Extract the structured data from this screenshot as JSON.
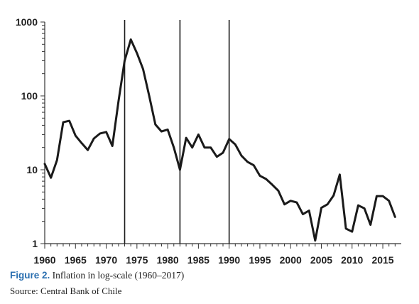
{
  "caption": {
    "figure_label": "Figure 2.",
    "figure_text": " Inflation in log-scale (1960–2017)",
    "source": "Source: Central Bank of Chile"
  },
  "colors": {
    "line": "#1a1a1a",
    "axis": "#333333",
    "figure_label": "#2a6fb0"
  },
  "chart_data": {
    "type": "line",
    "title": "",
    "xlabel": "",
    "ylabel": "",
    "y_scale": "log",
    "ylim": [
      1,
      1000
    ],
    "xlim": [
      1960,
      2018
    ],
    "grid": false,
    "legend": "none",
    "x_ticks": [
      "1960",
      "1965",
      "1970",
      "1975",
      "1980",
      "1985",
      "1990",
      "1995",
      "2000",
      "2005",
      "2010",
      "2015"
    ],
    "y_ticks": [
      "1",
      "10",
      "100",
      "1000"
    ],
    "vertical_lines": [
      1973,
      1982,
      1990
    ],
    "series": [
      {
        "x": [
          1960,
          1961,
          1962,
          1963,
          1964,
          1965,
          1966,
          1967,
          1968,
          1969,
          1970,
          1971,
          1972,
          1973,
          1974,
          1975,
          1976,
          1977,
          1978,
          1979,
          1980,
          1981,
          1982,
          1983,
          1984,
          1985,
          1986,
          1987,
          1988,
          1989,
          1990,
          1991,
          1992,
          1993,
          1994,
          1995,
          1996,
          1997,
          1998,
          1999,
          2000,
          2001,
          2002,
          2003,
          2004,
          2005,
          2006,
          2007,
          2008,
          2009,
          2010,
          2011,
          2012,
          2013,
          2014,
          2015,
          2016,
          2017
        ],
        "values": [
          12,
          7.8,
          13.5,
          44,
          46,
          29,
          23,
          18.5,
          26.5,
          31,
          32.5,
          21,
          85,
          300,
          580,
          380,
          230,
          100,
          41,
          33,
          35,
          20,
          10,
          27,
          20,
          30,
          20,
          20,
          15,
          17,
          26,
          22,
          15.5,
          12.8,
          11.5,
          8.3,
          7.5,
          6.3,
          5.2,
          3.4,
          3.8,
          3.6,
          2.5,
          2.8,
          1.1,
          3.05,
          3.4,
          4.5,
          8.6,
          1.6,
          1.45,
          3.3,
          3,
          1.8,
          4.4,
          4.4,
          3.8,
          2.3
        ]
      }
    ]
  }
}
